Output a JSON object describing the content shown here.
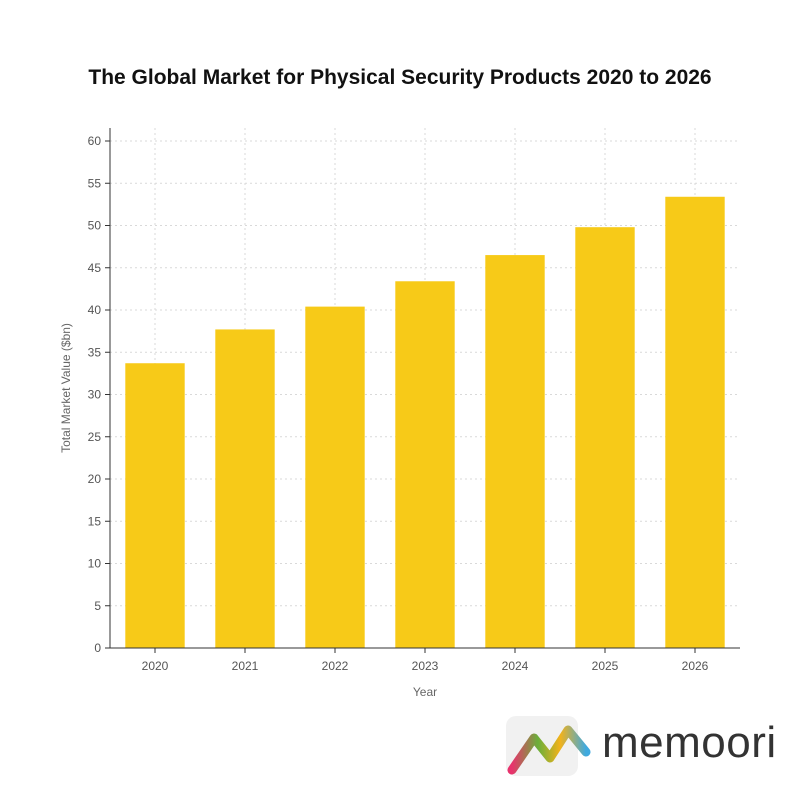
{
  "chart_data": {
    "type": "bar",
    "title": "The Global Market for Physical Security Products 2020 to 2026",
    "xlabel": "Year",
    "ylabel": "Total Market Value ($bn)",
    "categories": [
      "2020",
      "2021",
      "2022",
      "2023",
      "2024",
      "2025",
      "2026"
    ],
    "values": [
      33.7,
      37.7,
      40.4,
      43.4,
      46.5,
      49.8,
      53.4
    ],
    "ylim": [
      0,
      60
    ],
    "yticks": [
      0,
      5,
      10,
      15,
      20,
      25,
      30,
      35,
      40,
      45,
      50,
      55,
      60
    ],
    "grid": true,
    "bar_color": "#F7CA18"
  },
  "logo": {
    "text": "memoori",
    "colors": [
      "#E8336D",
      "#6AAF3A",
      "#F2B21B",
      "#3FA9DF"
    ]
  }
}
